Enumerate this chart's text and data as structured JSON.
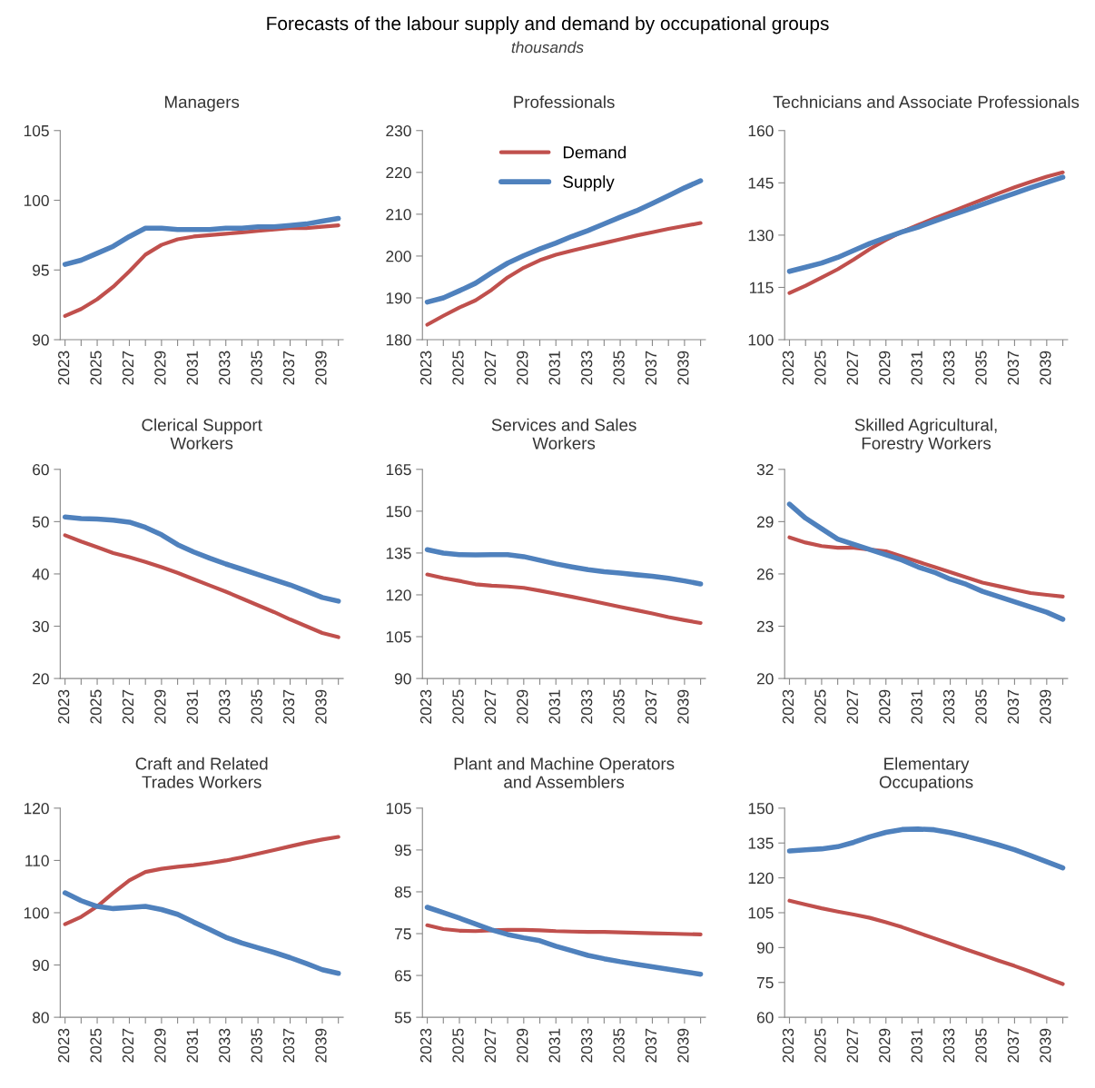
{
  "chart_data": [
    {
      "type": "other",
      "title": "Forecasts of the labour supply and demand by occupational groups",
      "subtitle": "thousands"
    },
    {
      "type": "line",
      "title": "Managers",
      "categories": [
        "2023",
        null,
        "2025",
        null,
        "2027",
        null,
        "2029",
        null,
        "2031",
        null,
        "2033",
        null,
        "2035",
        null,
        "2037",
        null,
        "2039",
        null
      ],
      "ylim": [
        90,
        105
      ],
      "yticks": [
        90,
        95,
        100,
        105
      ],
      "grid": false,
      "legend": false,
      "series": [
        {
          "color": "#c0504d",
          "values": [
            91.7,
            92.2,
            92.9,
            93.8,
            94.9,
            96.1,
            96.8,
            97.2,
            97.4,
            97.5,
            97.6,
            97.7,
            97.8,
            97.9,
            98.0,
            98.0,
            98.1,
            98.2
          ]
        },
        {
          "color": "#4f81bd",
          "values": [
            95.4,
            95.7,
            96.2,
            96.7,
            97.4,
            98.0,
            98.0,
            97.9,
            97.9,
            97.9,
            98.0,
            98.0,
            98.1,
            98.1,
            98.2,
            98.3,
            98.5,
            98.7
          ]
        }
      ]
    },
    {
      "type": "line",
      "title": "Professionals",
      "categories": [
        "2023",
        null,
        "2025",
        null,
        "2027",
        null,
        "2029",
        null,
        "2031",
        null,
        "2033",
        null,
        "2035",
        null,
        "2037",
        null,
        "2039",
        null
      ],
      "ylim": [
        180,
        230
      ],
      "yticks": [
        180,
        190,
        200,
        210,
        220,
        230
      ],
      "grid": false,
      "legend": "top",
      "series": [
        {
          "name": "Demand",
          "color": "#c0504d",
          "values": [
            183.6,
            185.7,
            187.7,
            189.4,
            191.9,
            194.9,
            197.2,
            199.0,
            200.3,
            201.3,
            202.2,
            203.1,
            204.0,
            204.9,
            205.7,
            206.5,
            207.2,
            207.9
          ]
        },
        {
          "name": "Supply",
          "color": "#4f81bd",
          "values": [
            189.0,
            190.0,
            191.7,
            193.5,
            196.0,
            198.3,
            200.1,
            201.7,
            203.1,
            204.7,
            206.1,
            207.7,
            209.3,
            210.8,
            212.6,
            214.4,
            216.3,
            218.0
          ]
        }
      ]
    },
    {
      "type": "line",
      "title": "Technicians and Associate Professionals",
      "categories": [
        "2023",
        null,
        "2025",
        null,
        "2027",
        null,
        "2029",
        null,
        "2031",
        null,
        "2033",
        null,
        "2035",
        null,
        "2037",
        null,
        "2039",
        null
      ],
      "ylim": [
        100,
        160
      ],
      "yticks": [
        100,
        115,
        130,
        145,
        160
      ],
      "grid": false,
      "legend": false,
      "series": [
        {
          "color": "#c0504d",
          "values": [
            113.4,
            115.5,
            117.8,
            120.2,
            123.0,
            126.0,
            128.6,
            131.0,
            132.9,
            134.8,
            136.6,
            138.4,
            140.2,
            142.0,
            143.7,
            145.3,
            146.8,
            148.0
          ]
        },
        {
          "color": "#4f81bd",
          "values": [
            119.6,
            120.8,
            122.0,
            123.6,
            125.6,
            127.6,
            129.3,
            130.9,
            132.3,
            134.0,
            135.6,
            137.2,
            138.8,
            140.4,
            142.0,
            143.6,
            145.1,
            146.6
          ]
        }
      ]
    },
    {
      "type": "line",
      "title": "Clerical Support\nWorkers",
      "categories": [
        "2023",
        null,
        "2025",
        null,
        "2027",
        null,
        "2029",
        null,
        "2031",
        null,
        "2033",
        null,
        "2035",
        null,
        "2037",
        null,
        "2039",
        null
      ],
      "ylim": [
        20,
        60
      ],
      "yticks": [
        20,
        30,
        40,
        50,
        60
      ],
      "grid": false,
      "legend": false,
      "series": [
        {
          "color": "#c0504d",
          "values": [
            47.4,
            46.2,
            45.1,
            44.0,
            43.2,
            42.3,
            41.3,
            40.2,
            39.0,
            37.8,
            36.6,
            35.3,
            34.0,
            32.7,
            31.3,
            30.0,
            28.7,
            27.9
          ]
        },
        {
          "color": "#4f81bd",
          "values": [
            50.9,
            50.6,
            50.5,
            50.3,
            49.9,
            48.9,
            47.5,
            45.6,
            44.2,
            43.0,
            41.9,
            40.9,
            39.9,
            38.9,
            37.9,
            36.7,
            35.5,
            34.8
          ]
        }
      ]
    },
    {
      "type": "line",
      "title": "Services and Sales\nWorkers",
      "categories": [
        "2023",
        null,
        "2025",
        null,
        "2027",
        null,
        "2029",
        null,
        "2031",
        null,
        "2033",
        null,
        "2035",
        null,
        "2037",
        null,
        "2039",
        null
      ],
      "ylim": [
        90,
        165
      ],
      "yticks": [
        90,
        105,
        120,
        135,
        150,
        165
      ],
      "grid": false,
      "legend": false,
      "series": [
        {
          "color": "#c0504d",
          "values": [
            127.3,
            126.0,
            125.0,
            123.8,
            123.3,
            123.0,
            122.5,
            121.5,
            120.4,
            119.3,
            118.1,
            116.9,
            115.7,
            114.5,
            113.3,
            112.0,
            110.9,
            109.9
          ]
        },
        {
          "color": "#4f81bd",
          "values": [
            136.2,
            135.0,
            134.4,
            134.3,
            134.4,
            134.4,
            133.7,
            132.4,
            131.1,
            130.0,
            129.0,
            128.3,
            127.8,
            127.2,
            126.7,
            125.9,
            125.0,
            123.9
          ]
        }
      ]
    },
    {
      "type": "line",
      "title": "Skilled Agricultural,\nForestry Workers",
      "categories": [
        "2023",
        null,
        "2025",
        null,
        "2027",
        null,
        "2029",
        null,
        "2031",
        null,
        "2033",
        null,
        "2035",
        null,
        "2037",
        null,
        "2039",
        null
      ],
      "ylim": [
        20,
        32
      ],
      "yticks": [
        20,
        23,
        26,
        29,
        32
      ],
      "grid": false,
      "legend": false,
      "series": [
        {
          "color": "#c0504d",
          "values": [
            28.1,
            27.8,
            27.6,
            27.5,
            27.5,
            27.4,
            27.3,
            27.0,
            26.7,
            26.4,
            26.1,
            25.8,
            25.5,
            25.3,
            25.1,
            24.9,
            24.8,
            24.7
          ]
        },
        {
          "color": "#4f81bd",
          "values": [
            30.0,
            29.2,
            28.6,
            28.0,
            27.7,
            27.4,
            27.1,
            26.8,
            26.4,
            26.1,
            25.7,
            25.4,
            25.0,
            24.7,
            24.4,
            24.1,
            23.8,
            23.4
          ]
        }
      ]
    },
    {
      "type": "line",
      "title": "Craft and Related\nTrades Workers",
      "categories": [
        "2023",
        null,
        "2025",
        null,
        "2027",
        null,
        "2029",
        null,
        "2031",
        null,
        "2033",
        null,
        "2035",
        null,
        "2037",
        null,
        "2039",
        null
      ],
      "ylim": [
        80,
        120
      ],
      "yticks": [
        80,
        90,
        100,
        110,
        120
      ],
      "grid": false,
      "legend": false,
      "series": [
        {
          "color": "#c0504d",
          "values": [
            97.8,
            99.2,
            101.2,
            103.8,
            106.2,
            107.8,
            108.4,
            108.8,
            109.1,
            109.5,
            110.0,
            110.6,
            111.3,
            112.0,
            112.7,
            113.4,
            114.0,
            114.5
          ]
        },
        {
          "color": "#4f81bd",
          "values": [
            103.8,
            102.3,
            101.2,
            100.8,
            101.0,
            101.2,
            100.6,
            99.7,
            98.2,
            96.8,
            95.3,
            94.2,
            93.3,
            92.4,
            91.4,
            90.3,
            89.1,
            88.4
          ]
        }
      ]
    },
    {
      "type": "line",
      "title": "Plant and Machine Operators\nand Assemblers",
      "categories": [
        "2023",
        null,
        "2025",
        null,
        "2027",
        null,
        "2029",
        null,
        "2031",
        null,
        "2033",
        null,
        "2035",
        null,
        "2037",
        null,
        "2039",
        null
      ],
      "ylim": [
        55,
        105
      ],
      "yticks": [
        55,
        65,
        75,
        85,
        95,
        105
      ],
      "grid": false,
      "legend": false,
      "series": [
        {
          "color": "#c0504d",
          "values": [
            77.0,
            76.1,
            75.7,
            75.6,
            75.8,
            75.9,
            75.9,
            75.8,
            75.6,
            75.5,
            75.4,
            75.4,
            75.3,
            75.2,
            75.1,
            75.0,
            74.9,
            74.8
          ]
        },
        {
          "color": "#4f81bd",
          "values": [
            81.3,
            80.0,
            78.7,
            77.3,
            75.9,
            74.8,
            74.0,
            73.3,
            72.0,
            70.9,
            69.8,
            69.0,
            68.3,
            67.7,
            67.1,
            66.5,
            65.9,
            65.3
          ]
        }
      ]
    },
    {
      "type": "line",
      "title": "Elementary\nOccupations",
      "categories": [
        "2023",
        null,
        "2025",
        null,
        "2027",
        null,
        "2029",
        null,
        "2031",
        null,
        "2033",
        null,
        "2035",
        null,
        "2037",
        null,
        "2039",
        null
      ],
      "ylim": [
        60,
        150
      ],
      "yticks": [
        60,
        75,
        90,
        105,
        120,
        135,
        150
      ],
      "grid": false,
      "legend": false,
      "series": [
        {
          "color": "#c0504d",
          "values": [
            110.2,
            108.5,
            106.9,
            105.5,
            104.2,
            102.8,
            100.9,
            98.8,
            96.4,
            94.0,
            91.6,
            89.2,
            86.8,
            84.4,
            82.1,
            79.6,
            76.9,
            74.3
          ]
        },
        {
          "color": "#4f81bd",
          "values": [
            131.6,
            132.1,
            132.5,
            133.4,
            135.3,
            137.7,
            139.6,
            140.8,
            141.0,
            140.7,
            139.5,
            137.9,
            136.1,
            134.2,
            132.1,
            129.6,
            126.9,
            124.3
          ]
        }
      ]
    }
  ]
}
